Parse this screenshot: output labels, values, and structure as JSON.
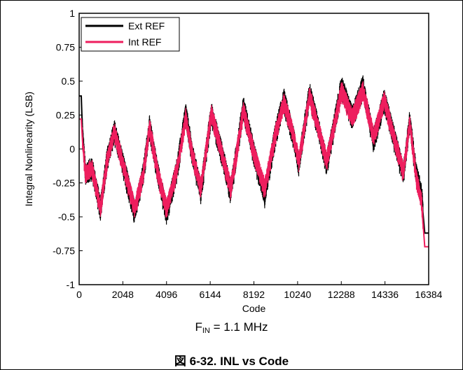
{
  "caption": "図 6-32. INL vs Code",
  "condition": {
    "prefix": "F",
    "subscript": "IN",
    "text": " = 1.1 MHz"
  },
  "colors": {
    "ext": "#000000",
    "int": "#ee1e5e"
  },
  "chart_data": {
    "type": "line",
    "xlabel": "Code",
    "ylabel": "Integral Nonlinearity (LSB)",
    "xlim": [
      0,
      16384
    ],
    "ylim": [
      -1,
      1
    ],
    "x_ticks": [
      0,
      2048,
      4096,
      6144,
      8192,
      10240,
      12288,
      14336,
      16384
    ],
    "x_tick_labels": [
      "0",
      "2048",
      "4096",
      "6144",
      "8192",
      "10240",
      "12288",
      "14336",
      "16384"
    ],
    "y_ticks": [
      1,
      0.75,
      0.5,
      0.25,
      0,
      -0.25,
      -0.5,
      -0.75,
      -1
    ],
    "y_tick_labels": [
      "1",
      "0.75",
      "0.5",
      "0.25",
      "0",
      "-0.25",
      "-0.5",
      "-0.75",
      "-1"
    ],
    "grid": false,
    "legend_position": "top-left",
    "series": [
      {
        "name": "Ext REF",
        "color": "#000000",
        "x": [
          0,
          100,
          160,
          300,
          600,
          1000,
          1300,
          1650,
          2100,
          2600,
          3000,
          3300,
          3700,
          4100,
          4600,
          5000,
          5300,
          5700,
          6200,
          6700,
          7100,
          7300,
          7700,
          8200,
          8700,
          9200,
          9600,
          10000,
          10300,
          10800,
          11200,
          11600,
          11900,
          12300,
          12800,
          13300,
          13800,
          14300,
          14800,
          15200,
          15500,
          15800,
          16050,
          16200,
          16300,
          16384
        ],
        "y": [
          0.39,
          0.39,
          0.1,
          -0.2,
          -0.15,
          -0.45,
          -0.1,
          0.12,
          -0.15,
          -0.48,
          -0.2,
          0.15,
          -0.2,
          -0.48,
          -0.15,
          0.25,
          -0.05,
          -0.32,
          0.25,
          -0.05,
          -0.33,
          -0.12,
          0.3,
          -0.05,
          -0.35,
          0.1,
          0.35,
          0.1,
          -0.12,
          0.4,
          0.15,
          -0.12,
          0.12,
          0.45,
          0.22,
          0.45,
          0.05,
          0.35,
          0.05,
          -0.2,
          0.2,
          -0.2,
          -0.35,
          -0.62,
          -0.62,
          -0.62
        ]
      },
      {
        "name": "Int REF",
        "color": "#ee1e5e",
        "x": [
          0,
          100,
          160,
          300,
          600,
          1000,
          1300,
          1650,
          2100,
          2600,
          3000,
          3300,
          3700,
          4100,
          4600,
          5000,
          5300,
          5700,
          6200,
          6700,
          7100,
          7300,
          7700,
          8200,
          8700,
          9200,
          9600,
          10000,
          10300,
          10800,
          11200,
          11600,
          11900,
          12300,
          12800,
          13300,
          13800,
          14300,
          14800,
          15200,
          15500,
          15800,
          16050,
          16200,
          16300,
          16384
        ],
        "y": [
          0.22,
          0.22,
          0.05,
          -0.2,
          -0.15,
          -0.45,
          -0.1,
          0.12,
          -0.15,
          -0.45,
          -0.2,
          0.15,
          -0.2,
          -0.45,
          -0.15,
          0.22,
          -0.05,
          -0.3,
          0.25,
          -0.05,
          -0.3,
          -0.12,
          0.28,
          -0.05,
          -0.3,
          0.1,
          0.33,
          0.12,
          -0.1,
          0.38,
          0.15,
          -0.1,
          0.12,
          0.42,
          0.22,
          0.42,
          0.08,
          0.35,
          0.05,
          -0.18,
          0.18,
          -0.22,
          -0.4,
          -0.72,
          -0.72,
          -0.72
        ]
      }
    ]
  }
}
